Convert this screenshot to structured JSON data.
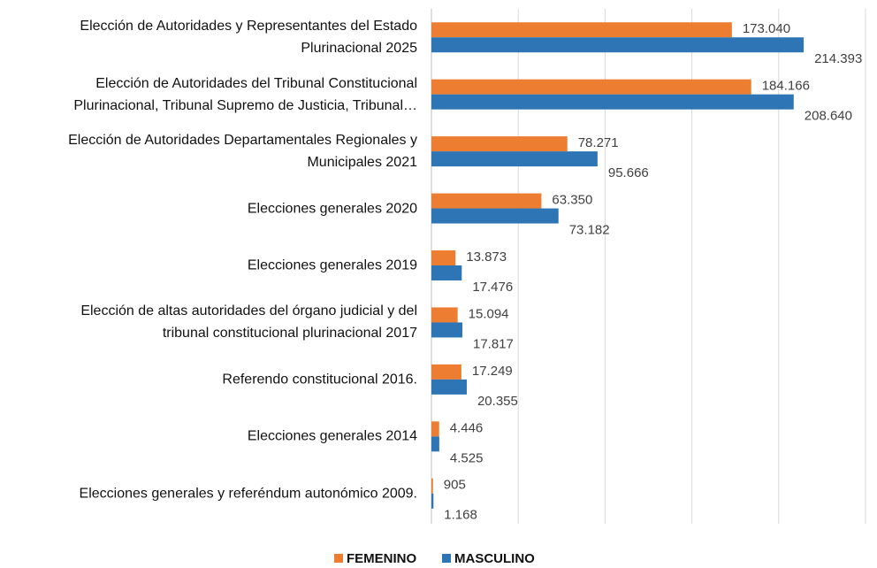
{
  "chart_data": {
    "type": "bar",
    "orientation": "horizontal",
    "categories": [
      "Elección de Autoridades y  Representantes del Estado\nPlurinacional 2025",
      "Elección de Autoridades del Tribunal Constitucional\nPlurinacional, Tribunal Supremo de Justicia, Tribunal…",
      "Elección de Autoridades Departamentales Regionales y\nMunicipales 2021",
      "Elecciones generales 2020",
      "Elecciones generales 2019",
      "Elección de altas autoridades del órgano judicial y del\ntribunal constitucional plurinacional 2017",
      "Referendo constitucional 2016.",
      "Elecciones generales 2014",
      "Elecciones generales y referéndum autonómico 2009."
    ],
    "series": [
      {
        "name": "FEMENINO",
        "color": "#ed7d31",
        "values": [
          173040,
          184166,
          78271,
          63350,
          13873,
          15094,
          17249,
          4446,
          905
        ],
        "value_labels": [
          "173.040",
          "184.166",
          "78.271",
          "63.350",
          "13.873",
          "15.094",
          "17.249",
          "4.446",
          "905"
        ]
      },
      {
        "name": "MASCULINO",
        "color": "#2e75b6",
        "values": [
          214393,
          208640,
          95666,
          73182,
          17476,
          17817,
          20355,
          4525,
          1168
        ],
        "value_labels": [
          "214.393",
          "208.640",
          "95.666",
          "73.182",
          "17.476",
          "17.817",
          "20.355",
          "4.525",
          "1.168"
        ]
      }
    ],
    "xlim": [
      0,
      250000
    ],
    "xticks": [
      0,
      50000,
      100000,
      150000,
      200000,
      250000
    ],
    "grid": true,
    "legend": "bottom"
  }
}
